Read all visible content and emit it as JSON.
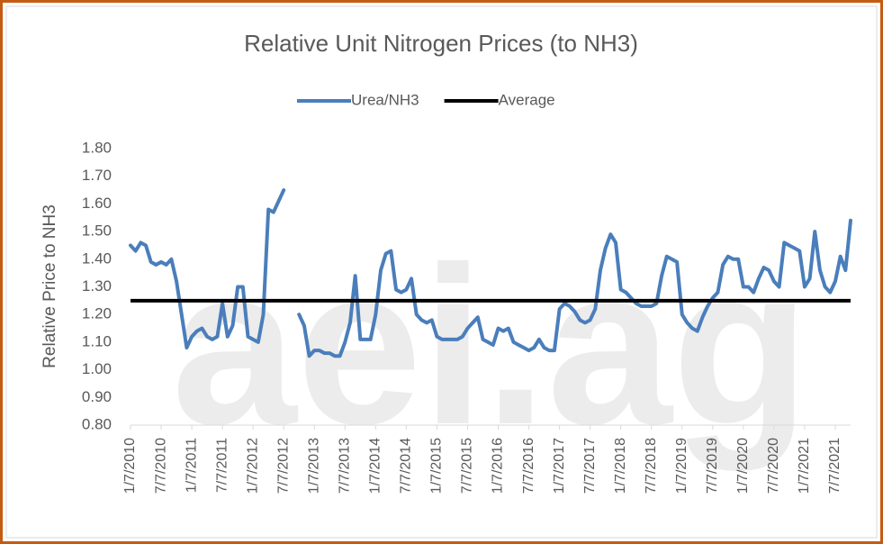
{
  "chart_data": {
    "type": "line",
    "title": "Relative Unit Nitrogen Prices (to NH3)",
    "y_label": "Relative Price to NH3",
    "watermark": "aei.ag",
    "categories": [
      "1/7/2010",
      null,
      null,
      null,
      null,
      null,
      "7/7/2010",
      null,
      null,
      null,
      null,
      null,
      "1/7/2011",
      null,
      null,
      null,
      null,
      null,
      "7/7/2011",
      null,
      null,
      null,
      null,
      null,
      "1/7/2012",
      null,
      null,
      null,
      null,
      null,
      "7/7/2012",
      null,
      null,
      null,
      null,
      null,
      "1/7/2013",
      null,
      null,
      null,
      null,
      null,
      "7/7/2013",
      null,
      null,
      null,
      null,
      null,
      "1/7/2014",
      null,
      null,
      null,
      null,
      null,
      "7/7/2014",
      null,
      null,
      null,
      null,
      null,
      "1/7/2015",
      null,
      null,
      null,
      null,
      null,
      "7/7/2015",
      null,
      null,
      null,
      null,
      null,
      "1/7/2016",
      null,
      null,
      null,
      null,
      null,
      "7/7/2016",
      null,
      null,
      null,
      null,
      null,
      "1/7/2017",
      null,
      null,
      null,
      null,
      null,
      "7/7/2017",
      null,
      null,
      null,
      null,
      null,
      "1/7/2018",
      null,
      null,
      null,
      null,
      null,
      "7/7/2018",
      null,
      null,
      null,
      null,
      null,
      "1/7/2019",
      null,
      null,
      null,
      null,
      null,
      "7/7/2019",
      null,
      null,
      null,
      null,
      null,
      "1/7/2020",
      null,
      null,
      null,
      null,
      null,
      "7/7/2020",
      null,
      null,
      null,
      null,
      null,
      "1/7/2021",
      null,
      null,
      null,
      null,
      null,
      "7/7/2021",
      null,
      null,
      null
    ],
    "series": [
      {
        "name": "Urea/NH3",
        "color": "#4a7ebb",
        "values": [
          1.45,
          1.43,
          1.46,
          1.45,
          1.39,
          1.38,
          1.39,
          1.38,
          1.4,
          1.32,
          1.2,
          1.08,
          1.12,
          1.14,
          1.15,
          1.12,
          1.11,
          1.12,
          1.24,
          1.12,
          1.16,
          1.3,
          1.3,
          1.12,
          1.11,
          1.1,
          1.2,
          1.58,
          1.57,
          1.61,
          1.65,
          null,
          null,
          1.2,
          1.16,
          1.05,
          1.07,
          1.07,
          1.06,
          1.06,
          1.05,
          1.05,
          1.1,
          1.17,
          1.34,
          1.11,
          1.11,
          1.11,
          1.2,
          1.36,
          1.42,
          1.43,
          1.29,
          1.28,
          1.29,
          1.33,
          1.2,
          1.18,
          1.17,
          1.18,
          1.12,
          1.11,
          1.11,
          1.11,
          1.11,
          1.12,
          1.15,
          1.17,
          1.19,
          1.11,
          1.1,
          1.09,
          1.15,
          1.14,
          1.15,
          1.1,
          1.09,
          1.08,
          1.07,
          1.08,
          1.11,
          1.08,
          1.07,
          1.07,
          1.22,
          1.24,
          1.23,
          1.21,
          1.18,
          1.17,
          1.18,
          1.22,
          1.36,
          1.44,
          1.49,
          1.46,
          1.29,
          1.28,
          1.26,
          1.24,
          1.23,
          1.23,
          1.23,
          1.24,
          1.34,
          1.41,
          1.4,
          1.39,
          1.2,
          1.17,
          1.15,
          1.14,
          1.19,
          1.23,
          1.26,
          1.28,
          1.38,
          1.41,
          1.4,
          1.4,
          1.3,
          1.3,
          1.28,
          1.33,
          1.37,
          1.36,
          1.32,
          1.3,
          1.46,
          1.45,
          1.44,
          1.43,
          1.3,
          1.33,
          1.5,
          1.36,
          1.3,
          1.28,
          1.32,
          1.41,
          1.36,
          1.54
        ]
      }
    ],
    "reference_lines": [
      {
        "name": "Average",
        "value": 1.25,
        "color": "#000000"
      }
    ],
    "ylim": [
      0.8,
      1.8
    ],
    "yticks": [
      {
        "value": 0.8,
        "label": "0.80"
      },
      {
        "value": 0.9,
        "label": "0.90"
      },
      {
        "value": 1.0,
        "label": "1.00"
      },
      {
        "value": 1.1,
        "label": "1.10"
      },
      {
        "value": 1.2,
        "label": "1.20"
      },
      {
        "value": 1.3,
        "label": "1.30"
      },
      {
        "value": 1.4,
        "label": "1.40"
      },
      {
        "value": 1.5,
        "label": "1.50"
      },
      {
        "value": 1.6,
        "label": "1.60"
      },
      {
        "value": 1.7,
        "label": "1.70"
      },
      {
        "value": 1.8,
        "label": "1.80"
      }
    ],
    "grid": false
  }
}
